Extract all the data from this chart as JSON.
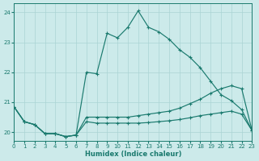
{
  "xlabel": "Humidex (Indice chaleur)",
  "background_color": "#cceaea",
  "grid_color": "#aad4d4",
  "line_color": "#1a7a6e",
  "xlim": [
    0,
    23
  ],
  "ylim": [
    19.7,
    24.3
  ],
  "xticks": [
    0,
    1,
    2,
    3,
    4,
    5,
    6,
    7,
    8,
    9,
    10,
    11,
    12,
    13,
    14,
    15,
    16,
    17,
    18,
    19,
    20,
    21,
    22,
    23
  ],
  "yticks": [
    20,
    21,
    22,
    23,
    24
  ],
  "line1_x": [
    0,
    1,
    2,
    3,
    4,
    5,
    6,
    7,
    8,
    9,
    10,
    11,
    12,
    13,
    14,
    15,
    16,
    17,
    18,
    19,
    20,
    21,
    22,
    23
  ],
  "line1_y": [
    20.85,
    20.35,
    20.25,
    19.95,
    19.95,
    19.85,
    19.9,
    22.0,
    21.95,
    23.3,
    23.15,
    23.5,
    24.05,
    23.5,
    23.35,
    23.1,
    22.75,
    22.5,
    22.15,
    21.7,
    21.25,
    21.05,
    20.75,
    20.05
  ],
  "line2_x": [
    0,
    1,
    2,
    3,
    4,
    5,
    6,
    7,
    8,
    9,
    10,
    11,
    12,
    13,
    14,
    15,
    16,
    17,
    18,
    19,
    20,
    21,
    22,
    23
  ],
  "line2_y": [
    20.85,
    20.35,
    20.25,
    19.95,
    19.95,
    19.85,
    19.9,
    20.5,
    20.5,
    20.5,
    20.5,
    20.5,
    20.55,
    20.6,
    20.65,
    20.7,
    20.8,
    20.95,
    21.1,
    21.3,
    21.45,
    21.55,
    21.45,
    20.05
  ],
  "line3_x": [
    0,
    1,
    2,
    3,
    4,
    5,
    6,
    7,
    8,
    9,
    10,
    11,
    12,
    13,
    14,
    15,
    16,
    17,
    18,
    19,
    20,
    21,
    22,
    23
  ],
  "line3_y": [
    20.85,
    20.35,
    20.25,
    19.95,
    19.95,
    19.85,
    19.9,
    20.35,
    20.3,
    20.3,
    20.3,
    20.3,
    20.3,
    20.32,
    20.35,
    20.38,
    20.42,
    20.48,
    20.55,
    20.6,
    20.65,
    20.7,
    20.6,
    20.05
  ]
}
